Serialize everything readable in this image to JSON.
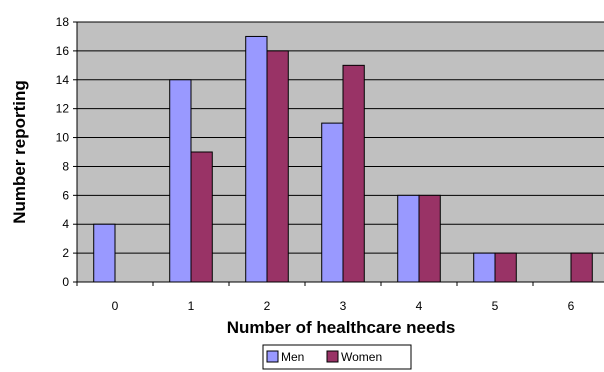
{
  "chart_data": {
    "type": "bar",
    "categories": [
      "0",
      "1",
      "2",
      "3",
      "4",
      "5",
      "6"
    ],
    "series": [
      {
        "name": "Men",
        "color": "#9999ff",
        "values": [
          4,
          14,
          17,
          11,
          6,
          2,
          0
        ]
      },
      {
        "name": "Women",
        "color": "#993366",
        "values": [
          0,
          9,
          16,
          15,
          6,
          2,
          2
        ]
      }
    ],
    "xlabel": "Number of healthcare needs",
    "ylabel": "Number reporting",
    "ylim": [
      0,
      18
    ],
    "yticks": [
      "0",
      "2",
      "4",
      "6",
      "8",
      "10",
      "12",
      "14",
      "16",
      "18"
    ],
    "grid": true,
    "plot_background": "#c0c0c0",
    "legend_position": "bottom-center"
  }
}
